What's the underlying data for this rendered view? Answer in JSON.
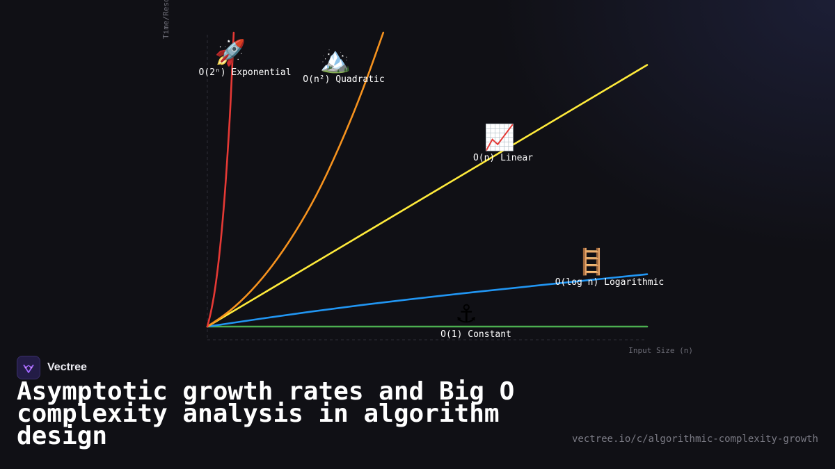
{
  "chart_data": {
    "type": "line",
    "xlabel": "Input Size (n)",
    "ylabel": "Time/Resources",
    "grid": false,
    "xlim": [
      0,
      10
    ],
    "ylim": [
      0,
      10
    ],
    "series": [
      {
        "name": "O(1) Constant",
        "icon": "anchor-icon",
        "emoji": "⚓",
        "color": "#4caf50",
        "x": [
          0,
          10
        ],
        "y": [
          0,
          0
        ]
      },
      {
        "name": "O(log n) Logarithmic",
        "icon": "ladder-icon",
        "emoji": "🪜",
        "color": "#2196f3",
        "x": [
          0,
          2.5,
          5,
          7.5,
          10
        ],
        "y": [
          0,
          0.55,
          1.0,
          1.4,
          1.78
        ]
      },
      {
        "name": "O(n) Linear",
        "icon": "chart-increasing-icon",
        "emoji": "📈",
        "color": "#ffeb3b",
        "x": [
          0,
          10
        ],
        "y": [
          0,
          8.9
        ]
      },
      {
        "name": "O(n²) Quadratic",
        "icon": "mountain-icon",
        "emoji": "🏔️",
        "color": "#f7931e",
        "x": [
          0,
          0.5,
          1,
          1.5,
          2,
          2.5,
          3,
          3.5,
          4
        ],
        "y": [
          0,
          0.5,
          1.2,
          2.1,
          3.2,
          4.5,
          6.1,
          7.9,
          10
        ]
      },
      {
        "name": "O(2ⁿ) Exponential",
        "icon": "rocket-icon",
        "emoji": "🚀",
        "color": "#e53935",
        "x": [
          0,
          0.1,
          0.2,
          0.3,
          0.4,
          0.5,
          0.55,
          0.6
        ],
        "y": [
          0,
          0.6,
          1.5,
          2.8,
          4.5,
          6.8,
          8.3,
          10
        ]
      }
    ]
  },
  "brand": {
    "name": "Vectree"
  },
  "title": "Asymptotic growth rates and Big O complexity analysis in algorithm design",
  "url": "vectree.io/c/algorithmic-complexity-growth"
}
